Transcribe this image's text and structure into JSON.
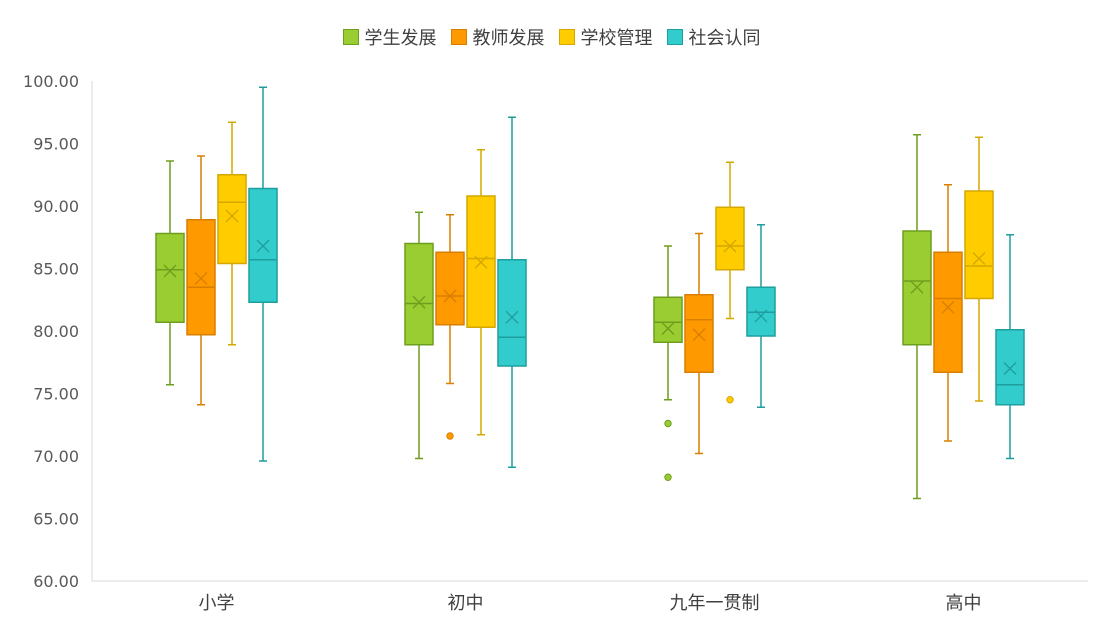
{
  "chart_data": {
    "type": "box",
    "title": "",
    "xlabel": "",
    "ylabel": "",
    "ylim": [
      60,
      100
    ],
    "yticks": [
      "100.00",
      "95.00",
      "90.00",
      "85.00",
      "80.00",
      "75.00",
      "70.00",
      "65.00",
      "60.00"
    ],
    "categories": [
      "小学",
      "初中",
      "九年一贯制",
      "高中"
    ],
    "grid": false,
    "legend_position": "top",
    "series": [
      {
        "name": "学生发展",
        "color": "#9ACD32",
        "stroke": "#6E9E1E",
        "boxes": [
          {
            "min": 75.7,
            "q1": 80.7,
            "median": 84.9,
            "q3": 87.8,
            "max": 93.6,
            "mean": 84.8,
            "outliers": []
          },
          {
            "min": 69.8,
            "q1": 78.9,
            "median": 82.2,
            "q3": 87.0,
            "max": 89.5,
            "mean": 82.3,
            "outliers": []
          },
          {
            "min": 74.5,
            "q1": 79.1,
            "median": 80.7,
            "q3": 82.7,
            "max": 86.8,
            "mean": 80.2,
            "outliers": [
              72.6,
              68.3
            ]
          },
          {
            "min": 66.6,
            "q1": 78.9,
            "median": 84.0,
            "q3": 88.0,
            "max": 95.7,
            "mean": 83.5,
            "outliers": []
          }
        ]
      },
      {
        "name": "教师发展",
        "color": "#FF9900",
        "stroke": "#D97F00",
        "boxes": [
          {
            "min": 74.1,
            "q1": 79.7,
            "median": 83.5,
            "q3": 88.9,
            "max": 94.0,
            "mean": 84.2,
            "outliers": []
          },
          {
            "min": 75.8,
            "q1": 80.5,
            "median": 82.8,
            "q3": 86.3,
            "max": 89.3,
            "mean": 82.8,
            "outliers": [
              71.6
            ]
          },
          {
            "min": 70.2,
            "q1": 76.7,
            "median": 80.9,
            "q3": 82.9,
            "max": 87.8,
            "mean": 79.7,
            "outliers": []
          },
          {
            "min": 71.2,
            "q1": 76.7,
            "median": 82.6,
            "q3": 86.3,
            "max": 91.7,
            "mean": 81.9,
            "outliers": []
          }
        ]
      },
      {
        "name": "学校管理",
        "color": "#FFCC00",
        "stroke": "#D4A800",
        "boxes": [
          {
            "min": 78.9,
            "q1": 85.4,
            "median": 90.3,
            "q3": 92.5,
            "max": 96.7,
            "mean": 89.2,
            "outliers": []
          },
          {
            "min": 71.7,
            "q1": 80.3,
            "median": 85.8,
            "q3": 90.8,
            "max": 94.5,
            "mean": 85.5,
            "outliers": []
          },
          {
            "min": 81.0,
            "q1": 84.9,
            "median": 86.8,
            "q3": 89.9,
            "max": 93.5,
            "mean": 86.8,
            "outliers": [
              74.5
            ]
          },
          {
            "min": 74.4,
            "q1": 82.6,
            "median": 85.2,
            "q3": 91.2,
            "max": 95.5,
            "mean": 85.8,
            "outliers": []
          }
        ]
      },
      {
        "name": "社会认同",
        "color": "#33CCCC",
        "stroke": "#1E9E9E",
        "boxes": [
          {
            "min": 69.6,
            "q1": 82.3,
            "median": 85.7,
            "q3": 91.4,
            "max": 99.5,
            "mean": 86.8,
            "outliers": []
          },
          {
            "min": 69.1,
            "q1": 77.2,
            "median": 79.5,
            "q3": 85.7,
            "max": 97.1,
            "mean": 81.1,
            "outliers": []
          },
          {
            "min": 73.9,
            "q1": 79.6,
            "median": 81.5,
            "q3": 83.5,
            "max": 88.5,
            "mean": 81.2,
            "outliers": []
          },
          {
            "min": 69.8,
            "q1": 74.1,
            "median": 75.7,
            "q3": 80.1,
            "max": 87.7,
            "mean": 77.0,
            "outliers": []
          }
        ]
      }
    ]
  }
}
